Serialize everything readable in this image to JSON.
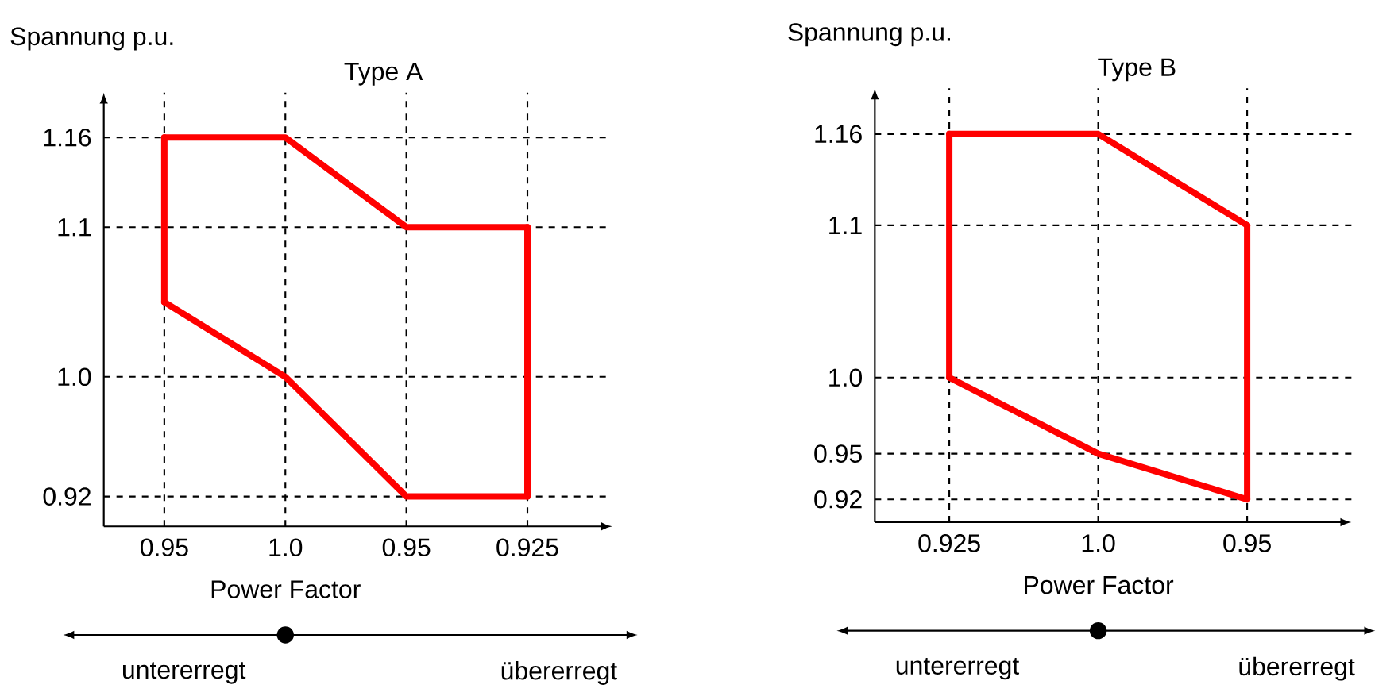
{
  "chart_data": [
    {
      "type": "line",
      "title": "Type A",
      "xlabel": "Power Factor",
      "ylabel": "Spannung p.u.",
      "grid": true,
      "categories": [
        "0.95",
        "1.0",
        "0.95",
        "0.925"
      ],
      "series": [
        {
          "color": "#ff0000",
          "values": [
            1.16,
            1.16,
            1.1,
            1.1
          ],
          "errors": [
            [
              1.05,
              1.16
            ],
            null,
            null,
            [
              0.92,
              1.1
            ]
          ]
        },
        {
          "color": "#ff0000",
          "values": [
            1.05,
            1.0,
            0.92,
            0.92
          ]
        }
      ],
      "ylim": [
        0.9,
        1.19
      ],
      "yticks": [
        0.92,
        {
          "value": 1,
          "label": "1.0"
        },
        1.1,
        1.16
      ],
      "annotations": [
        "untererregt",
        "übererregt"
      ]
    },
    {
      "type": "line",
      "title": "Type B",
      "xlabel": "Power Factor",
      "ylabel": "Spannung p.u.",
      "grid": true,
      "categories": [
        "0.925",
        "1.0",
        "0.95"
      ],
      "series": [
        {
          "color": "#ff0000",
          "values": [
            1.16,
            1.16,
            1.1
          ],
          "errors": [
            [
              1.0,
              1.16
            ],
            null,
            [
              0.92,
              1.1
            ]
          ]
        },
        {
          "color": "#ff0000",
          "values": [
            1.0,
            0.95,
            0.92
          ]
        }
      ],
      "ylim": [
        0.905,
        1.19
      ],
      "yticks": [
        0.92,
        0.95,
        {
          "value": 1,
          "label": "1.0"
        },
        1.1,
        1.16
      ],
      "annotations": [
        "untererregt",
        "übererregt"
      ]
    }
  ]
}
